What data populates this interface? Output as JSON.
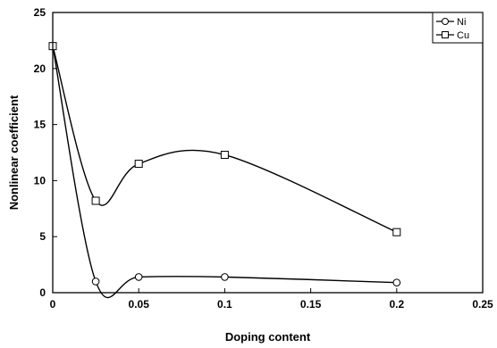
{
  "chart_data": {
    "type": "line",
    "title": "",
    "xlabel": "Doping content",
    "ylabel": "Nonlinear coefficient",
    "xlim": [
      0,
      0.25
    ],
    "ylim": [
      0,
      25
    ],
    "xticks": [
      "0",
      "0.05",
      "0.1",
      "0.15",
      "0.2",
      "0.25"
    ],
    "yticks": [
      "0",
      "5",
      "10",
      "15",
      "20",
      "25"
    ],
    "grid": false,
    "legend_position": "top-right",
    "smooth": true,
    "series": [
      {
        "name": "Ni",
        "marker": "circle",
        "x": [
          0,
          0.025,
          0.05,
          0.1,
          0.2
        ],
        "y": [
          22.0,
          1.0,
          1.4,
          1.4,
          0.9
        ]
      },
      {
        "name": "Cu",
        "marker": "square",
        "x": [
          0,
          0.025,
          0.05,
          0.1,
          0.2
        ],
        "y": [
          22.0,
          8.2,
          11.5,
          12.3,
          5.4
        ]
      }
    ]
  }
}
